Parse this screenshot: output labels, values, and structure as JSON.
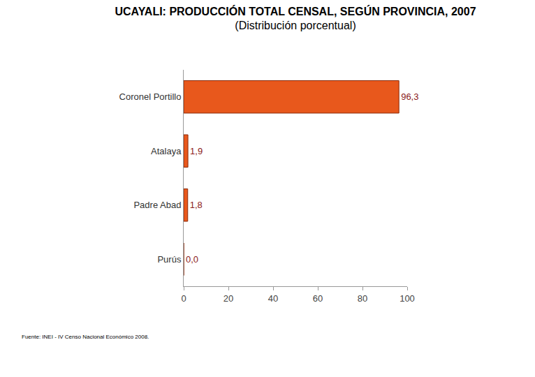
{
  "chart_data": {
    "type": "bar",
    "title": "UCAYALI: PRODUCCIÓN TOTAL CENSAL, SEGÚN PROVINCIA, 2007",
    "subtitle": "(Distribución porcentual)",
    "source": "Fuente: INEI - IV Censo Nacional Económico 2008.",
    "orientation": "horizontal",
    "categories": [
      "Coronel Portillo",
      "Atalaya",
      "Padre Abad",
      "Purús"
    ],
    "values": [
      96.3,
      1.9,
      1.8,
      0.0
    ],
    "value_labels": [
      "96,3",
      "1,9",
      "1,8",
      "0,0"
    ],
    "data_labels": true,
    "colors": [
      "#e8581c",
      "#e8581c",
      "#e8581c",
      "#111111"
    ],
    "xlim": [
      0,
      100
    ],
    "xticks": [
      0,
      20,
      40,
      60,
      80,
      100
    ],
    "grid": false
  }
}
